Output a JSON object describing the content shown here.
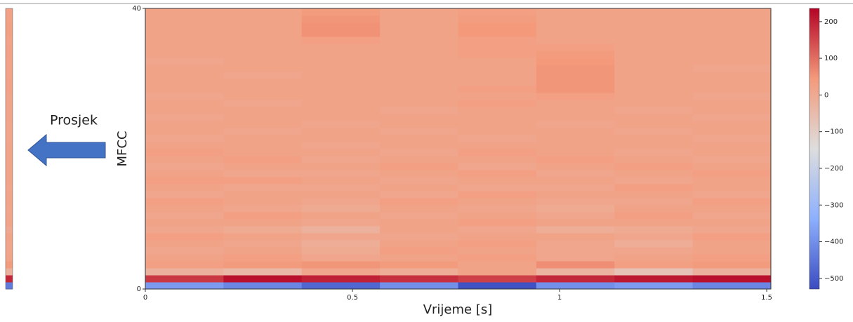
{
  "chart_data": {
    "type": "heatmap",
    "xlabel": "Vrijeme [s]",
    "ylabel": "MFCC",
    "xlim": [
      0,
      1.51
    ],
    "xticks": [
      0,
      0.5,
      1,
      1.5
    ],
    "ylim": [
      0,
      40
    ],
    "yticks": [
      0,
      40
    ],
    "colormap": "coolwarm",
    "clim": [
      -529,
      236
    ],
    "cticks": [
      200,
      100,
      0,
      {
        "value": -100,
        "label": "−100"
      },
      {
        "value": -200,
        "label": "−200"
      },
      {
        "value": -300,
        "label": "−300"
      },
      {
        "value": -400,
        "label": "−400"
      },
      {
        "value": -500,
        "label": "−500"
      }
    ],
    "z": [
      [
        -380,
        -420,
        -480,
        -400,
        -520,
        -400,
        -380,
        -420
      ],
      [
        170,
        220,
        200,
        180,
        160,
        190,
        210,
        220
      ],
      [
        -20,
        -40,
        10,
        -10,
        20,
        -30,
        -70,
        -20
      ],
      [
        30,
        40,
        50,
        40,
        20,
        60,
        30,
        40
      ],
      [
        20,
        30,
        10,
        20,
        30,
        10,
        20,
        30
      ],
      [
        10,
        20,
        0,
        30,
        20,
        10,
        10,
        20
      ],
      [
        20,
        10,
        -10,
        20,
        30,
        10,
        -10,
        20
      ],
      [
        30,
        20,
        10,
        10,
        20,
        20,
        10,
        30
      ],
      [
        10,
        0,
        -20,
        20,
        10,
        -10,
        0,
        10
      ],
      [
        20,
        20,
        10,
        20,
        30,
        20,
        20,
        20
      ],
      [
        10,
        30,
        20,
        10,
        20,
        10,
        30,
        10
      ],
      [
        20,
        10,
        0,
        20,
        10,
        0,
        20,
        20
      ],
      [
        30,
        20,
        10,
        30,
        20,
        10,
        10,
        30
      ],
      [
        10,
        20,
        20,
        10,
        30,
        20,
        20,
        10
      ],
      [
        20,
        10,
        10,
        20,
        10,
        10,
        30,
        20
      ],
      [
        30,
        30,
        20,
        10,
        20,
        20,
        10,
        20
      ],
      [
        20,
        10,
        10,
        20,
        30,
        10,
        20,
        30
      ],
      [
        10,
        20,
        20,
        30,
        10,
        20,
        30,
        20
      ],
      [
        20,
        30,
        10,
        20,
        20,
        30,
        20,
        10
      ],
      [
        30,
        20,
        20,
        10,
        30,
        20,
        10,
        20
      ],
      [
        20,
        20,
        10,
        20,
        20,
        20,
        20,
        20
      ],
      [
        10,
        20,
        20,
        20,
        10,
        20,
        20,
        10
      ],
      [
        20,
        10,
        20,
        10,
        20,
        20,
        10,
        20
      ],
      [
        20,
        20,
        10,
        20,
        20,
        10,
        20,
        20
      ],
      [
        10,
        20,
        20,
        20,
        20,
        20,
        20,
        10
      ],
      [
        20,
        20,
        20,
        10,
        20,
        20,
        10,
        20
      ],
      [
        20,
        10,
        20,
        20,
        30,
        20,
        20,
        20
      ],
      [
        10,
        20,
        20,
        20,
        20,
        30,
        20,
        10
      ],
      [
        20,
        20,
        20,
        20,
        30,
        50,
        20,
        20
      ],
      [
        20,
        20,
        20,
        20,
        20,
        50,
        20,
        20
      ],
      [
        20,
        10,
        20,
        20,
        20,
        50,
        20,
        20
      ],
      [
        20,
        20,
        20,
        20,
        20,
        50,
        20,
        10
      ],
      [
        10,
        20,
        20,
        20,
        20,
        45,
        20,
        20
      ],
      [
        20,
        20,
        20,
        20,
        30,
        40,
        20,
        20
      ],
      [
        20,
        20,
        20,
        20,
        30,
        30,
        20,
        20
      ],
      [
        20,
        20,
        30,
        20,
        30,
        20,
        20,
        20
      ],
      [
        20,
        20,
        55,
        20,
        45,
        20,
        20,
        20
      ],
      [
        20,
        20,
        55,
        20,
        45,
        20,
        20,
        20
      ],
      [
        20,
        20,
        50,
        20,
        35,
        20,
        20,
        20
      ],
      [
        20,
        20,
        40,
        20,
        30,
        20,
        20,
        20
      ]
    ],
    "average": {
      "label": "Prosjek",
      "values": [
        -440,
        190,
        -20,
        40,
        20,
        15,
        15,
        20,
        5,
        20,
        18,
        15,
        20,
        18,
        16,
        20,
        18,
        20,
        20,
        20,
        18,
        16,
        16,
        16,
        18,
        18,
        20,
        18,
        24,
        24,
        22,
        22,
        22,
        24,
        24,
        22,
        28,
        28,
        26,
        24
      ]
    }
  }
}
